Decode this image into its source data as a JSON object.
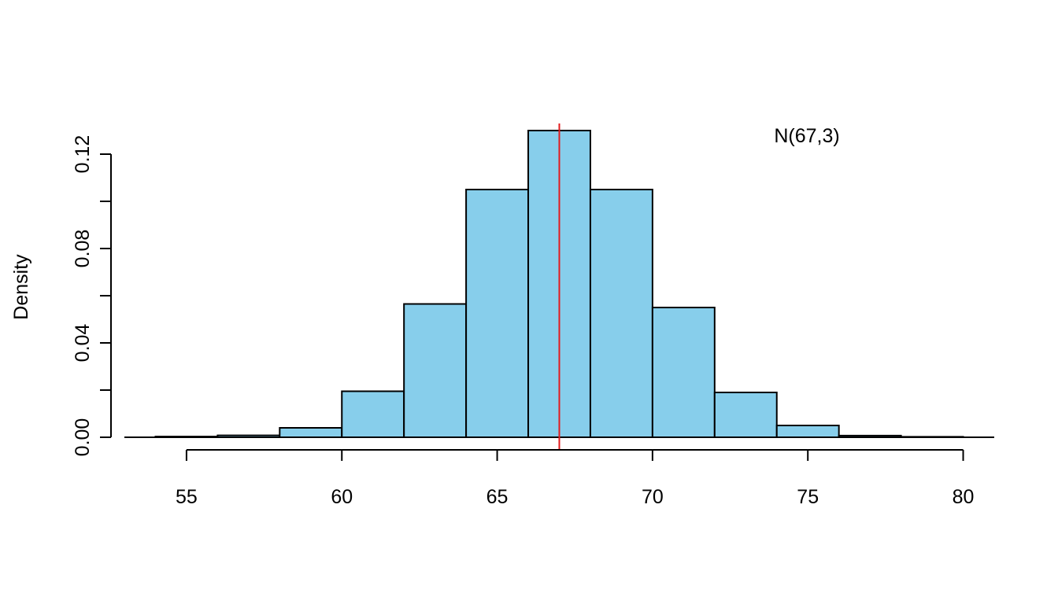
{
  "chart_data": {
    "type": "histogram",
    "title": "",
    "xlabel": "",
    "ylabel": "Density",
    "annotation": "N(67,3)",
    "bins": [
      {
        "x0": 54,
        "x1": 56,
        "density": 0.0003
      },
      {
        "x0": 56,
        "x1": 58,
        "density": 0.0008
      },
      {
        "x0": 58,
        "x1": 60,
        "density": 0.004
      },
      {
        "x0": 60,
        "x1": 62,
        "density": 0.0195
      },
      {
        "x0": 62,
        "x1": 64,
        "density": 0.0565
      },
      {
        "x0": 64,
        "x1": 66,
        "density": 0.105
      },
      {
        "x0": 66,
        "x1": 68,
        "density": 0.13
      },
      {
        "x0": 68,
        "x1": 70,
        "density": 0.105
      },
      {
        "x0": 70,
        "x1": 72,
        "density": 0.055
      },
      {
        "x0": 72,
        "x1": 74,
        "density": 0.019
      },
      {
        "x0": 74,
        "x1": 76,
        "density": 0.005
      },
      {
        "x0": 76,
        "x1": 78,
        "density": 0.0007
      },
      {
        "x0": 78,
        "x1": 80,
        "density": 0.0002
      }
    ],
    "mean_line": 67,
    "x_ticks": [
      55,
      60,
      65,
      70,
      75,
      80
    ],
    "x_tick_labels": [
      "55",
      "60",
      "65",
      "70",
      "75",
      "80"
    ],
    "y_ticks": [
      0.0,
      0.02,
      0.04,
      0.06,
      0.08,
      0.1,
      0.12
    ],
    "y_tick_labels": [
      "0.00",
      "",
      "0.04",
      "",
      "0.08",
      "",
      "0.12"
    ],
    "xlim": [
      53,
      81
    ],
    "ylim": [
      0,
      0.135
    ],
    "grid": false,
    "colors": {
      "bar_fill": "#87CEEB",
      "bar_stroke": "#000000",
      "mean_line": "#E31A1C"
    }
  }
}
